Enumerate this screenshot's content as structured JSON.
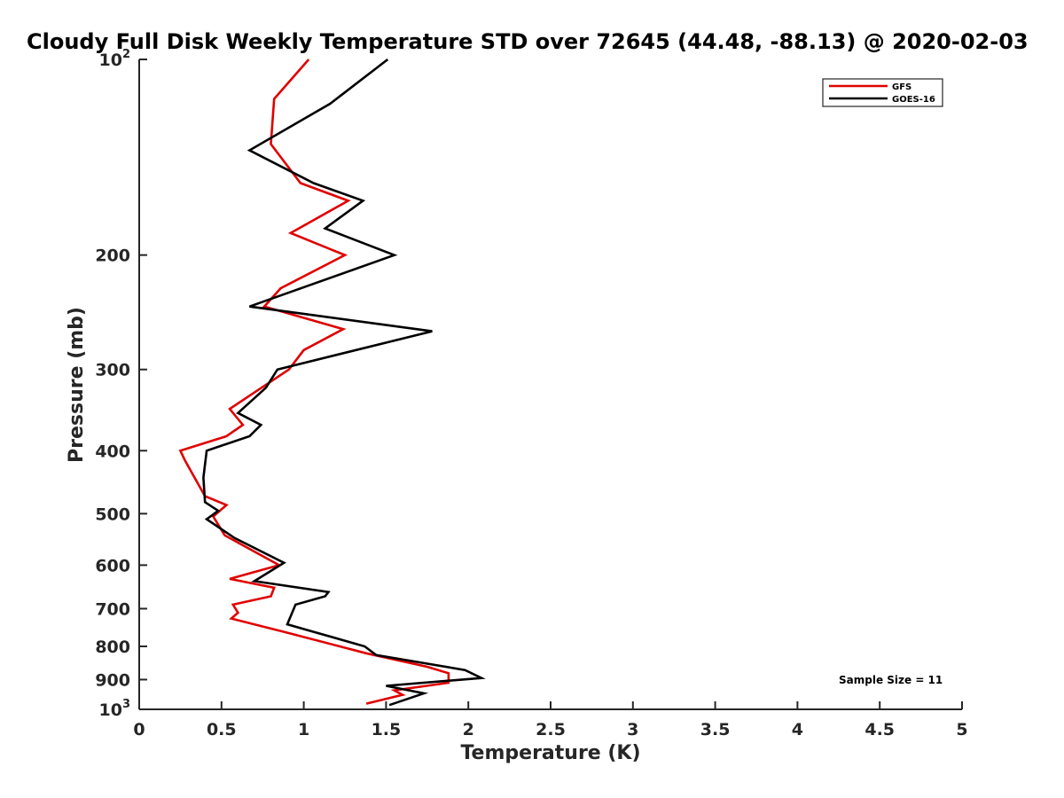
{
  "chart_data": {
    "type": "line",
    "title": "Cloudy Full Disk Weekly Temperature STD over 72645 (44.48, -88.13) @ 2020-02-03",
    "xlabel": "Temperature (K)",
    "ylabel": "Pressure (mb)",
    "xlim": [
      0,
      5
    ],
    "ylim": [
      100,
      1000
    ],
    "y_scale": "log",
    "y_reversed": true,
    "xticks": [
      "0",
      "0.5",
      "1",
      "1.5",
      "2",
      "2.5",
      "3",
      "3.5",
      "4",
      "4.5",
      "5"
    ],
    "yticks": [
      {
        "value": 100,
        "base": "10",
        "exp": "2"
      },
      {
        "value": 200,
        "label": "200"
      },
      {
        "value": 300,
        "label": "300"
      },
      {
        "value": 400,
        "label": "400"
      },
      {
        "value": 500,
        "label": "500"
      },
      {
        "value": 600,
        "label": "600"
      },
      {
        "value": 700,
        "label": "700"
      },
      {
        "value": 800,
        "label": "800"
      },
      {
        "value": 900,
        "label": "900"
      },
      {
        "value": 1000,
        "base": "10",
        "exp": "3"
      }
    ],
    "grid": false,
    "legend": "top-right",
    "annotation": "Sample Size = 11",
    "series": [
      {
        "name": "GFS",
        "color": "#e00000",
        "x": [
          1.03,
          0.82,
          0.8,
          0.98,
          1.27,
          0.92,
          1.25,
          0.86,
          0.76,
          1.24,
          1.0,
          0.91,
          0.55,
          0.63,
          0.53,
          0.25,
          0.28,
          0.4,
          0.53,
          0.45,
          0.52,
          0.85,
          0.55,
          0.82,
          0.8,
          0.57,
          0.6,
          0.56,
          0.88,
          1.38,
          1.75,
          1.88,
          1.88,
          1.55,
          1.6,
          1.38
        ],
        "y": [
          100,
          115,
          135,
          155,
          165,
          185,
          200,
          225,
          240,
          260,
          280,
          300,
          345,
          365,
          380,
          400,
          415,
          470,
          485,
          505,
          540,
          600,
          630,
          650,
          670,
          690,
          710,
          725,
          760,
          820,
          860,
          880,
          910,
          935,
          950,
          980
        ]
      },
      {
        "name": "GOES-16",
        "color": "#000000",
        "x": [
          1.51,
          1.16,
          0.67,
          1.06,
          1.36,
          1.13,
          1.55,
          0.67,
          1.78,
          0.84,
          0.77,
          0.6,
          0.74,
          0.67,
          0.41,
          0.39,
          0.4,
          0.48,
          0.41,
          0.58,
          0.88,
          0.7,
          1.15,
          1.13,
          0.95,
          0.9,
          1.06,
          1.37,
          1.44,
          1.98,
          2.08,
          1.5,
          1.73,
          1.52
        ],
        "y": [
          100,
          117,
          138,
          155,
          165,
          182,
          200,
          240,
          262,
          300,
          320,
          350,
          365,
          380,
          400,
          440,
          480,
          495,
          510,
          545,
          595,
          635,
          660,
          670,
          690,
          740,
          760,
          800,
          825,
          870,
          895,
          920,
          945,
          985
        ]
      }
    ]
  }
}
